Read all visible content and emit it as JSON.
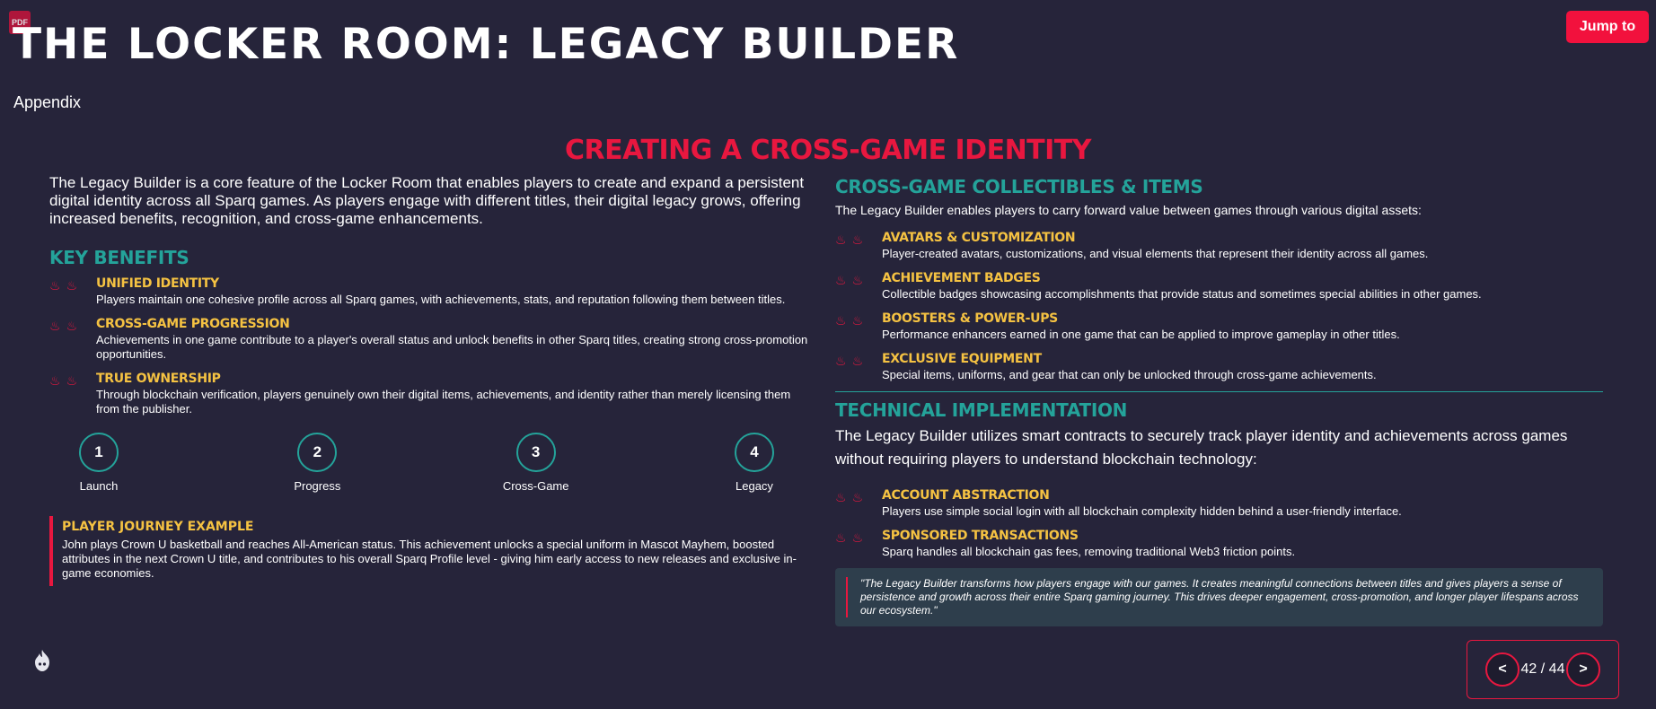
{
  "header": {
    "pdf_badge": "PDF",
    "title": "THE LOCKER ROOM: LEGACY BUILDER",
    "subtitle": "Appendix",
    "jump_button": "Jump to"
  },
  "section_title": "CREATING A CROSS-GAME IDENTITY",
  "left": {
    "intro": "The Legacy Builder is a core feature of the Locker Room that enables players to create and expand a persistent digital identity across all Sparq games. As players engage with different titles, their digital legacy grows, offering increased benefits, recognition, and cross-game enhancements.",
    "key_benefits_heading": "KEY BENEFITS",
    "benefits": [
      {
        "title": "UNIFIED IDENTITY",
        "desc": "Players maintain one cohesive profile across all Sparq games, with achievements, stats, and reputation following them between titles."
      },
      {
        "title": "CROSS-GAME PROGRESSION",
        "desc": "Achievements in one game contribute to a player's overall status and unlock benefits in other Sparq titles, creating strong cross-promotion opportunities."
      },
      {
        "title": "TRUE OWNERSHIP",
        "desc": "Through blockchain verification, players genuinely own their digital items, achievements, and identity rather than merely licensing them from the publisher."
      }
    ],
    "steps": [
      {
        "num": "1",
        "label": "Launch"
      },
      {
        "num": "2",
        "label": "Progress"
      },
      {
        "num": "3",
        "label": "Cross-Game"
      },
      {
        "num": "4",
        "label": "Legacy"
      }
    ],
    "journey": {
      "title": "PLAYER JOURNEY EXAMPLE",
      "text": "John plays Crown U basketball and reaches All-American status. This achievement unlocks a special uniform in Mascot Mayhem, boosted attributes in the next Crown U title, and contributes to his overall Sparq Profile level - giving him early access to new releases and exclusive in-game economies."
    }
  },
  "right": {
    "collectibles_heading": "CROSS-GAME COLLECTIBLES & ITEMS",
    "collectibles_intro": "The Legacy Builder enables players to carry forward value between games through various digital assets:",
    "collectibles": [
      {
        "title": "AVATARS & CUSTOMIZATION",
        "desc": "Player-created avatars, customizations, and visual elements that represent their identity across all games."
      },
      {
        "title": "ACHIEVEMENT BADGES",
        "desc": "Collectible badges showcasing accomplishments that provide status and sometimes special abilities in other games."
      },
      {
        "title": "BOOSTERS & POWER-UPS",
        "desc": "Performance enhancers earned in one game that can be applied to improve gameplay in other titles."
      },
      {
        "title": "EXCLUSIVE EQUIPMENT",
        "desc": "Special items, uniforms, and gear that can only be unlocked through cross-game achievements."
      }
    ],
    "tech_heading": "TECHNICAL IMPLEMENTATION",
    "tech_intro": "The Legacy Builder utilizes smart contracts to securely track player identity and achievements across games without requiring players to understand blockchain technology:",
    "tech_items": [
      {
        "title": "ACCOUNT ABSTRACTION",
        "desc": "Players use simple social login with all blockchain complexity hidden behind a user-friendly interface."
      },
      {
        "title": "SPONSORED TRANSACTIONS",
        "desc": "Sparq handles all blockchain gas fees, removing traditional Web3 friction points."
      }
    ],
    "quote": "\"The Legacy Builder transforms how players engage with our games. It creates meaningful connections between titles and gives players a sense of persistence and growth across their entire Sparq gaming journey. This drives deeper engagement, cross-promotion, and longer player lifespans across our ecosystem.\""
  },
  "pager": {
    "prev": "<",
    "next": ">",
    "status": "42 / 44"
  },
  "colors": {
    "background": "#26243a",
    "accent_red": "#e8173f",
    "teal": "#24a39a",
    "gold": "#f5c242"
  }
}
